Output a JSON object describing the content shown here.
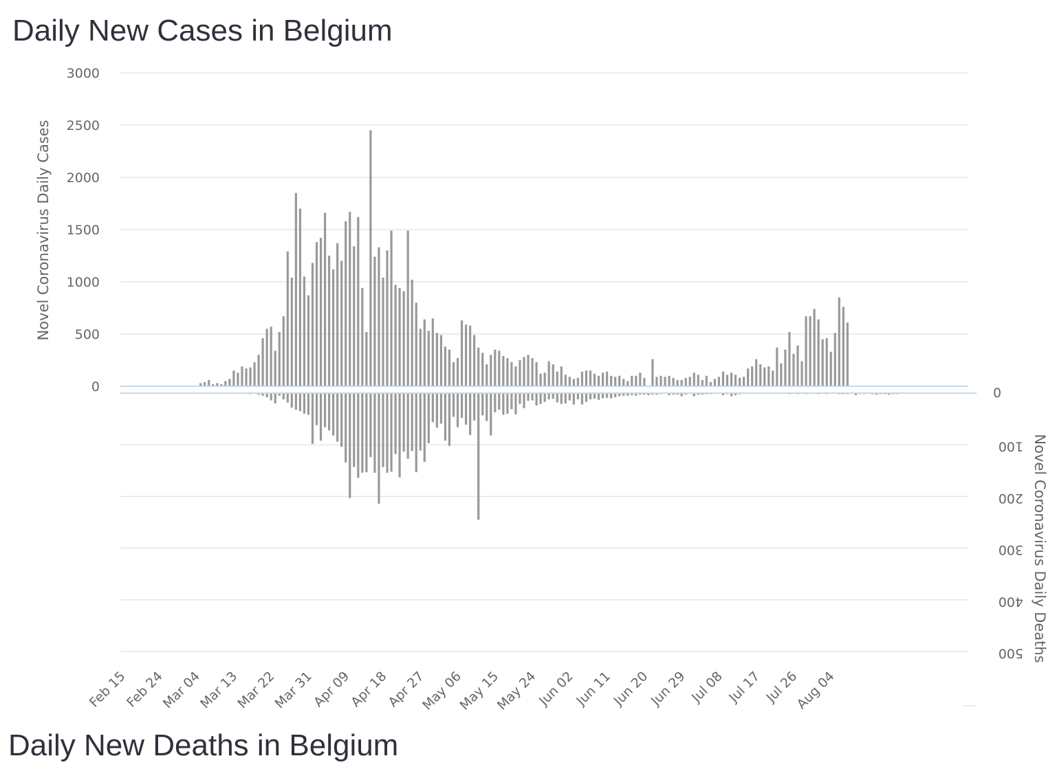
{
  "titles": {
    "cases": "Daily New Cases in Belgium",
    "deaths": "Daily New Deaths in Belgium"
  },
  "colors": {
    "bar": "#999999",
    "grid": "#e6e6e6",
    "zero_line": "#c8d8e6"
  },
  "chart_data": {
    "type": "bar",
    "title": "Daily New Cases in Belgium",
    "subtitle": "Daily New Deaths in Belgium",
    "xlabel": "",
    "ylabel": "Novel Coronavirus Daily Cases",
    "y2label": "Novel Coronavirus Daily Deaths",
    "ylim": [
      0,
      3000
    ],
    "y2lim": [
      0,
      500
    ],
    "y2_inverted": true,
    "yticks": [
      "0",
      "500",
      "1000",
      "1500",
      "2000",
      "2500",
      "3000"
    ],
    "y2ticks": [
      "0",
      "100",
      "200",
      "300",
      "400",
      "500"
    ],
    "xticks": [
      "Feb 15",
      "Feb 24",
      "Mar 04",
      "Mar 13",
      "Mar 22",
      "Mar 31",
      "Apr 09",
      "Apr 18",
      "Apr 27",
      "May 06",
      "May 15",
      "May 24",
      "Jun 02",
      "Jun 11",
      "Jun 20",
      "Jun 29",
      "Jul 08",
      "Jul 17",
      "Jul 26",
      "Aug 04"
    ],
    "start_date": "Feb 15",
    "series": [
      {
        "name": "Daily Cases",
        "values": [
          0,
          0,
          0,
          0,
          0,
          0,
          0,
          0,
          0,
          0,
          0,
          0,
          0,
          0,
          0,
          0,
          0,
          0,
          0,
          30,
          40,
          60,
          20,
          30,
          20,
          50,
          70,
          150,
          130,
          190,
          170,
          180,
          230,
          300,
          460,
          550,
          570,
          340,
          520,
          670,
          1290,
          1040,
          1850,
          1700,
          1050,
          870,
          1180,
          1380,
          1420,
          1660,
          1250,
          1120,
          1370,
          1200,
          1580,
          1670,
          1340,
          1620,
          940,
          520,
          2450,
          1240,
          1330,
          1040,
          1300,
          1490,
          970,
          940,
          910,
          1490,
          1020,
          800,
          550,
          640,
          530,
          650,
          510,
          490,
          380,
          350,
          230,
          270,
          630,
          590,
          580,
          490,
          370,
          320,
          210,
          300,
          350,
          340,
          290,
          270,
          230,
          190,
          250,
          280,
          300,
          270,
          230,
          120,
          130,
          240,
          210,
          140,
          190,
          110,
          90,
          70,
          80,
          140,
          150,
          150,
          120,
          100,
          130,
          140,
          100,
          90,
          100,
          70,
          50,
          100,
          100,
          130,
          80,
          0,
          260,
          90,
          100,
          90,
          100,
          80,
          60,
          60,
          80,
          90,
          130,
          110,
          60,
          100,
          40,
          70,
          90,
          140,
          110,
          130,
          110,
          80,
          90,
          170,
          190,
          260,
          210,
          180,
          190,
          150,
          370,
          220,
          350,
          520,
          310,
          390,
          240,
          670,
          670,
          740,
          640,
          450,
          460,
          330,
          510,
          850,
          760,
          610
        ]
      },
      {
        "name": "Daily Deaths",
        "values": [
          0,
          0,
          0,
          0,
          0,
          0,
          0,
          0,
          0,
          0,
          0,
          0,
          0,
          0,
          0,
          0,
          0,
          0,
          0,
          0,
          0,
          0,
          0,
          0,
          0,
          0,
          0,
          0,
          0,
          0,
          0,
          2,
          0,
          3,
          5,
          8,
          14,
          20,
          5,
          12,
          18,
          28,
          32,
          35,
          40,
          42,
          98,
          62,
          92,
          66,
          72,
          82,
          94,
          104,
          134,
          203,
          143,
          164,
          154,
          153,
          124,
          154,
          214,
          143,
          154,
          152,
          118,
          163,
          113,
          127,
          112,
          153,
          111,
          133,
          97,
          56,
          67,
          59,
          92,
          102,
          46,
          66,
          48,
          61,
          81,
          53,
          245,
          43,
          54,
          82,
          37,
          32,
          42,
          40,
          31,
          41,
          21,
          29,
          15,
          14,
          24,
          21,
          17,
          12,
          11,
          18,
          21,
          20,
          14,
          22,
          12,
          22,
          17,
          12,
          11,
          13,
          10,
          9,
          10,
          8,
          6,
          5,
          5,
          4,
          5,
          3,
          3,
          4,
          3,
          3,
          2,
          0,
          4,
          3,
          3,
          6,
          3,
          0,
          6,
          3,
          3,
          2,
          2,
          0,
          0,
          4,
          2,
          6,
          4,
          2,
          1,
          1,
          1,
          1,
          1,
          0,
          0,
          0,
          0,
          0,
          1,
          2,
          0,
          2,
          0,
          2,
          0,
          0,
          2,
          0,
          2,
          0,
          0,
          2,
          2,
          2,
          1,
          4,
          2,
          2,
          1,
          2,
          3,
          2,
          2,
          3,
          2,
          2
        ]
      }
    ]
  }
}
